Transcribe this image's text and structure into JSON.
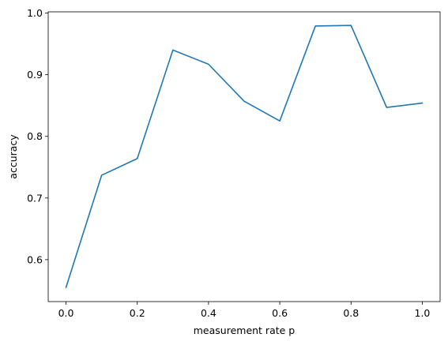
{
  "chart_data": {
    "type": "line",
    "title": "",
    "xlabel": "measurement rate p",
    "ylabel": "accuracy",
    "xlim": [
      -0.05,
      1.05
    ],
    "ylim": [
      0.532,
      1.002
    ],
    "xticks": [
      0.0,
      0.2,
      0.4,
      0.6,
      0.8,
      1.0
    ],
    "xtick_labels": [
      "0.0",
      "0.2",
      "0.4",
      "0.6",
      "0.8",
      "1.0"
    ],
    "yticks": [
      0.6,
      0.7,
      0.8,
      0.9,
      1.0
    ],
    "ytick_labels": [
      "0.6",
      "0.7",
      "0.8",
      "0.9",
      "1.0"
    ],
    "grid": false,
    "series": [
      {
        "color": "#1f77b4",
        "x": [
          0.0,
          0.1,
          0.2,
          0.3,
          0.4,
          0.5,
          0.6,
          0.7,
          0.8,
          0.9,
          1.0
        ],
        "y": [
          0.555,
          0.737,
          0.764,
          0.94,
          0.917,
          0.857,
          0.825,
          0.979,
          0.98,
          0.847,
          0.854
        ]
      }
    ]
  }
}
